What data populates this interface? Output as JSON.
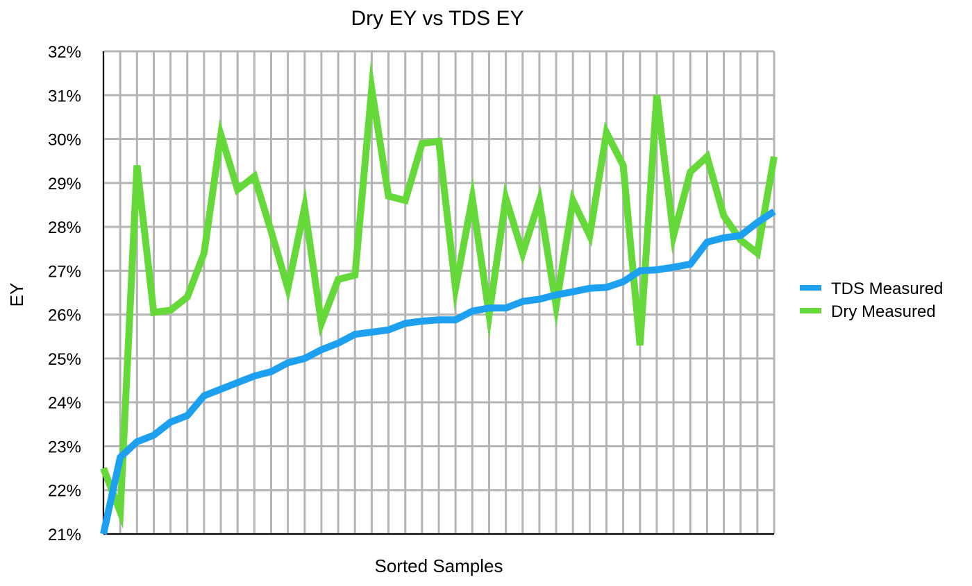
{
  "chart_data": {
    "type": "line",
    "title": "Dry EY vs TDS EY",
    "xlabel": "Sorted Samples",
    "ylabel": "EY",
    "ylim": [
      21,
      32
    ],
    "yticks": [
      "21%",
      "22%",
      "23%",
      "24%",
      "25%",
      "26%",
      "27%",
      "28%",
      "29%",
      "30%",
      "31%",
      "32%"
    ],
    "x_count": 41,
    "grid": true,
    "legend_position": "right",
    "series": [
      {
        "name": "TDS Measured",
        "color": "#1ea0f0",
        "values": [
          21.0,
          22.75,
          23.1,
          23.25,
          23.55,
          23.7,
          24.15,
          24.3,
          24.45,
          24.6,
          24.7,
          24.9,
          25.0,
          25.2,
          25.35,
          25.55,
          25.6,
          25.65,
          25.8,
          25.85,
          25.88,
          25.88,
          26.08,
          26.15,
          26.15,
          26.3,
          26.35,
          26.45,
          26.52,
          26.6,
          26.62,
          26.75,
          27.0,
          27.02,
          27.08,
          27.15,
          27.65,
          27.75,
          27.8,
          28.1,
          28.35
        ]
      },
      {
        "name": "Dry Measured",
        "color": "#66d93a",
        "values": [
          22.5,
          21.5,
          29.4,
          26.05,
          26.1,
          26.4,
          27.4,
          30.1,
          28.85,
          29.15,
          27.9,
          26.6,
          28.45,
          25.8,
          26.8,
          26.9,
          31.15,
          28.7,
          28.6,
          29.9,
          29.95,
          26.6,
          28.65,
          26.0,
          28.65,
          27.4,
          28.6,
          26.2,
          28.6,
          27.8,
          30.15,
          29.4,
          25.3,
          31.0,
          27.8,
          29.25,
          29.6,
          28.25,
          27.7,
          27.4,
          29.6
        ]
      }
    ]
  }
}
